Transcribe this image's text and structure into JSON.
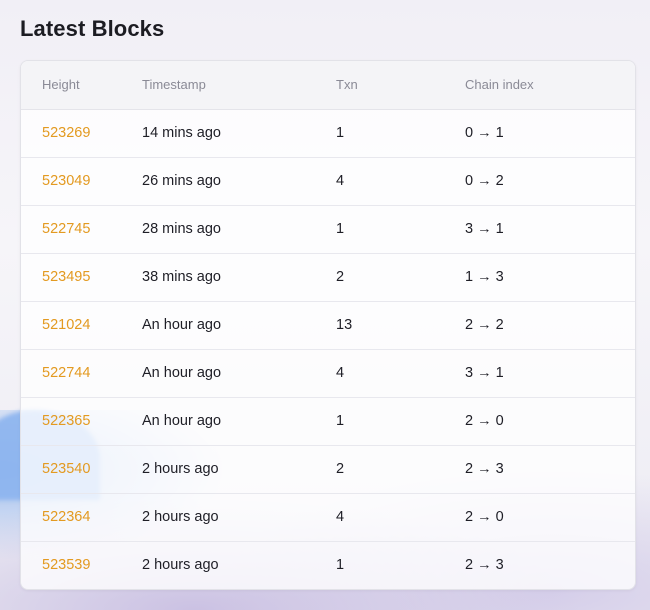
{
  "page": {
    "title": "Latest Blocks"
  },
  "colors": {
    "accent": "#e39a21",
    "text": "#1e1e26",
    "header_text": "#8a8a96"
  },
  "table": {
    "headers": [
      "Height",
      "Timestamp",
      "Txn",
      "Chain index"
    ],
    "chain_arrow": "→",
    "rows": [
      {
        "height": "523269",
        "timestamp": "14 mins ago",
        "txn": "1",
        "chain_from": "0",
        "chain_to": "1"
      },
      {
        "height": "523049",
        "timestamp": "26 mins ago",
        "txn": "4",
        "chain_from": "0",
        "chain_to": "2"
      },
      {
        "height": "522745",
        "timestamp": "28 mins ago",
        "txn": "1",
        "chain_from": "3",
        "chain_to": "1"
      },
      {
        "height": "523495",
        "timestamp": "38 mins ago",
        "txn": "2",
        "chain_from": "1",
        "chain_to": "3"
      },
      {
        "height": "521024",
        "timestamp": "An hour ago",
        "txn": "13",
        "chain_from": "2",
        "chain_to": "2"
      },
      {
        "height": "522744",
        "timestamp": "An hour ago",
        "txn": "4",
        "chain_from": "3",
        "chain_to": "1"
      },
      {
        "height": "522365",
        "timestamp": "An hour ago",
        "txn": "1",
        "chain_from": "2",
        "chain_to": "0"
      },
      {
        "height": "523540",
        "timestamp": "2 hours ago",
        "txn": "2",
        "chain_from": "2",
        "chain_to": "3"
      },
      {
        "height": "522364",
        "timestamp": "2 hours ago",
        "txn": "4",
        "chain_from": "2",
        "chain_to": "0"
      },
      {
        "height": "523539",
        "timestamp": "2 hours ago",
        "txn": "1",
        "chain_from": "2",
        "chain_to": "3"
      }
    ]
  }
}
